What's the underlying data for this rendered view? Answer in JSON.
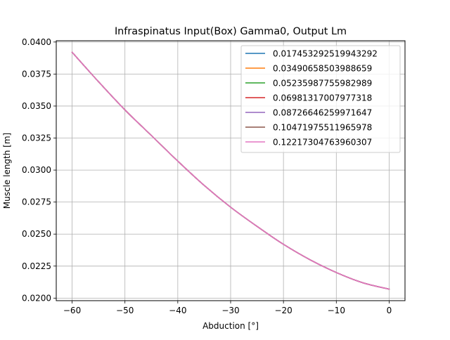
{
  "chart_data": {
    "type": "line",
    "title": "Infraspinatus Input(Box) Gamma0, Output Lm",
    "xlabel": "Abduction [°]",
    "ylabel": "Muscle length [m]",
    "xlim": [
      -63,
      3
    ],
    "ylim": [
      0.0198,
      0.0401
    ],
    "xticks": [
      -60,
      -50,
      -40,
      -30,
      -20,
      -10,
      0
    ],
    "xtick_labels": [
      "−60",
      "−50",
      "−40",
      "−30",
      "−20",
      "−10",
      "0"
    ],
    "yticks": [
      0.02,
      0.0225,
      0.025,
      0.0275,
      0.03,
      0.0325,
      0.035,
      0.0375,
      0.04
    ],
    "ytick_labels": [
      "0.0200",
      "0.0225",
      "0.0250",
      "0.0275",
      "0.0300",
      "0.0325",
      "0.0350",
      "0.0375",
      "0.0400"
    ],
    "grid": true,
    "legend_position": "top-right",
    "x": [
      -60,
      -55,
      -50,
      -45,
      -40,
      -35,
      -30,
      -25,
      -20,
      -15,
      -10,
      -5,
      0
    ],
    "series": [
      {
        "name": "0.017453292519943292",
        "color": "#1f77b4",
        "values": [
          0.0392,
          0.0369,
          0.0347,
          0.0327,
          0.0307,
          0.0288,
          0.0271,
          0.0256,
          0.0242,
          0.023,
          0.022,
          0.0212,
          0.0207
        ]
      },
      {
        "name": "0.03490658503988659",
        "color": "#ff7f0e",
        "values": [
          0.0392,
          0.0369,
          0.0347,
          0.0327,
          0.0307,
          0.0288,
          0.0271,
          0.0256,
          0.0242,
          0.023,
          0.022,
          0.0212,
          0.0207
        ]
      },
      {
        "name": "0.05235987755982989",
        "color": "#2ca02c",
        "values": [
          0.0392,
          0.0369,
          0.0347,
          0.0327,
          0.0307,
          0.0288,
          0.0271,
          0.0256,
          0.0242,
          0.023,
          0.022,
          0.0212,
          0.0207
        ]
      },
      {
        "name": "0.06981317007977318",
        "color": "#d62728",
        "values": [
          0.0392,
          0.0369,
          0.0347,
          0.0327,
          0.0307,
          0.0288,
          0.0271,
          0.0256,
          0.0242,
          0.023,
          0.022,
          0.0212,
          0.0207
        ]
      },
      {
        "name": "0.08726646259971647",
        "color": "#9467bd",
        "values": [
          0.0392,
          0.0369,
          0.0347,
          0.0327,
          0.0307,
          0.0288,
          0.0271,
          0.0256,
          0.0242,
          0.023,
          0.022,
          0.0212,
          0.0207
        ]
      },
      {
        "name": "0.10471975511965978",
        "color": "#8c564b",
        "values": [
          0.0392,
          0.0369,
          0.0347,
          0.0327,
          0.0307,
          0.0288,
          0.0271,
          0.0256,
          0.0242,
          0.023,
          0.022,
          0.0212,
          0.0207
        ]
      },
      {
        "name": "0.12217304763960307",
        "color": "#e377c2",
        "values": [
          0.0392,
          0.0369,
          0.0347,
          0.0327,
          0.0307,
          0.0288,
          0.0271,
          0.0256,
          0.0242,
          0.023,
          0.022,
          0.0212,
          0.0207
        ]
      }
    ]
  }
}
